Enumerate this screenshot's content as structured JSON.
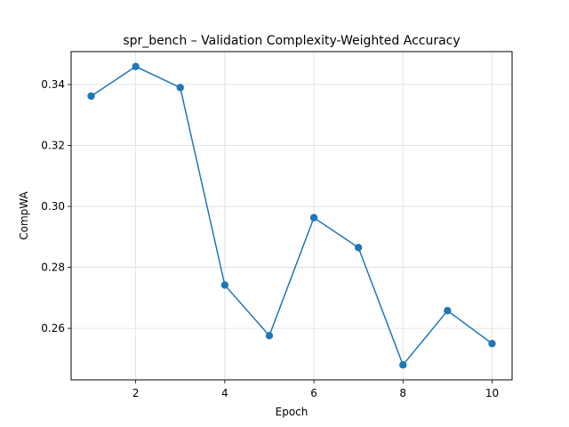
{
  "chart_data": {
    "type": "line",
    "title": "spr_bench – Validation Complexity-Weighted Accuracy",
    "xlabel": "Epoch",
    "ylabel": "CompWA",
    "x": [
      1,
      2,
      3,
      4,
      5,
      6,
      7,
      8,
      9,
      10
    ],
    "series": [
      {
        "values": [
          0.3362,
          0.3459,
          0.339,
          0.2742,
          0.2576,
          0.2963,
          0.2865,
          0.248,
          0.2658,
          0.255
        ]
      }
    ],
    "xlim": [
      0.55,
      10.45
    ],
    "ylim": [
      0.2431,
      0.3508
    ],
    "xticks": [
      2,
      4,
      6,
      8,
      10
    ],
    "yticks": [
      0.26,
      0.28,
      0.3,
      0.32,
      0.34
    ],
    "xtick_labels": [
      "2",
      "4",
      "6",
      "8",
      "10"
    ],
    "ytick_labels": [
      "0.26",
      "0.28",
      "0.30",
      "0.32",
      "0.34"
    ],
    "grid": true,
    "legend": "none",
    "line_color": "#1f77b4"
  }
}
